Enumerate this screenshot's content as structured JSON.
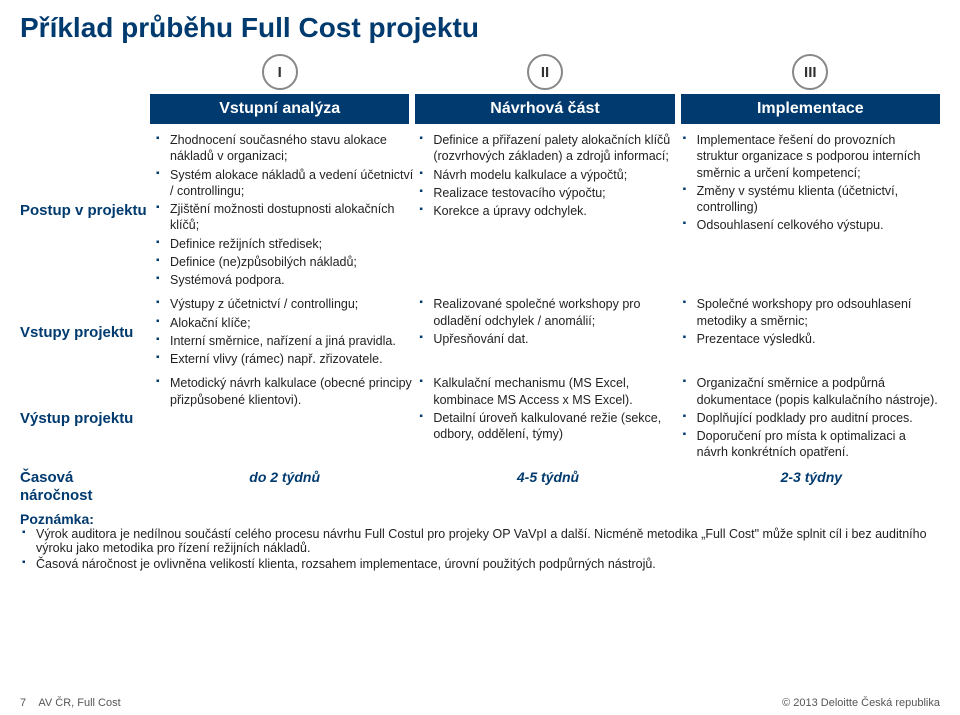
{
  "title": "Příklad průběhu Full Cost projektu",
  "phases": [
    {
      "num": "I",
      "label": "Vstupní analýza"
    },
    {
      "num": "II",
      "label": "Návrhová část"
    },
    {
      "num": "III",
      "label": "Implementace"
    }
  ],
  "rows": [
    {
      "label": "Postup v projektu",
      "cells": [
        [
          "Zhodnocení současného stavu alokace nákladů v organizaci;",
          "Systém alokace nákladů a vedení účetnictví / controllingu;",
          "Zjištění možnosti dostupnosti alokačních klíčů;",
          "Definice režijních středisek;",
          "Definice (ne)způsobilých nákladů;",
          "Systémová podpora."
        ],
        [
          "Definice a přiřazení palety alokačních klíčů (rozvrhových základen) a zdrojů informací;",
          "Návrh modelu kalkulace a výpočtů;",
          "Realizace testovacího výpočtu;",
          "Korekce a úpravy odchylek."
        ],
        [
          "Implementace řešení do provozních struktur organizace s podporou interních směrnic a určení kompetencí;",
          "Změny v systému klienta (účetnictví, controlling)",
          "Odsouhlasení celkového výstupu."
        ]
      ]
    },
    {
      "label": "Vstupy projektu",
      "cells": [
        [
          "Výstupy z účetnictví / controllingu;",
          "Alokační klíče;",
          "Interní směrnice, nařízení a jiná pravidla.",
          "Externí vlivy (rámec) např. zřizovatele."
        ],
        [
          "Realizované společné workshopy pro odladění odchylek / anomálií;",
          "Upřesňování dat."
        ],
        [
          "Společné workshopy pro odsouhlasení metodiky a směrnic;",
          "Prezentace výsledků."
        ]
      ]
    },
    {
      "label": "Výstup projektu",
      "cells": [
        [
          "Metodický návrh kalkulace (obecné principy přizpůsobené klientovi)."
        ],
        [
          "Kalkulační mechanismu (MS Excel, kombinace MS Access x MS Excel).",
          "Detailní úroveň kalkulované režie (sekce, odbory, oddělení, týmy)"
        ],
        [
          "Organizační směrnice a podpůrná dokumentace (popis kalkulačního nástroje).",
          "Doplňující podklady pro auditní proces.",
          "Doporučení pro místa k optimalizaci a návrh konkrétních opatření."
        ]
      ]
    }
  ],
  "timeRow": {
    "label": "Časová náročnost",
    "values": [
      "do 2 týdnů",
      "4-5 týdnů",
      "2-3 týdny"
    ]
  },
  "note": {
    "title": "Poznámka:",
    "items": [
      "Výrok auditora je nedílnou součástí celého procesu návrhu Full Costul pro projeky OP VaVpI a další. Nicméně metodika „Full Cost\" může splnit cíl i bez auditního výroku jako metodika pro řízení režijních nákladů.",
      "Časová náročnost je ovlivněna velikostí klienta, rozsahem implementace, úrovní použitých podpůrných nástrojů."
    ]
  },
  "footer": {
    "left_page": "7",
    "left_text": "AV ČR, Full Cost",
    "right": "© 2013 Deloitte Česká republika"
  }
}
